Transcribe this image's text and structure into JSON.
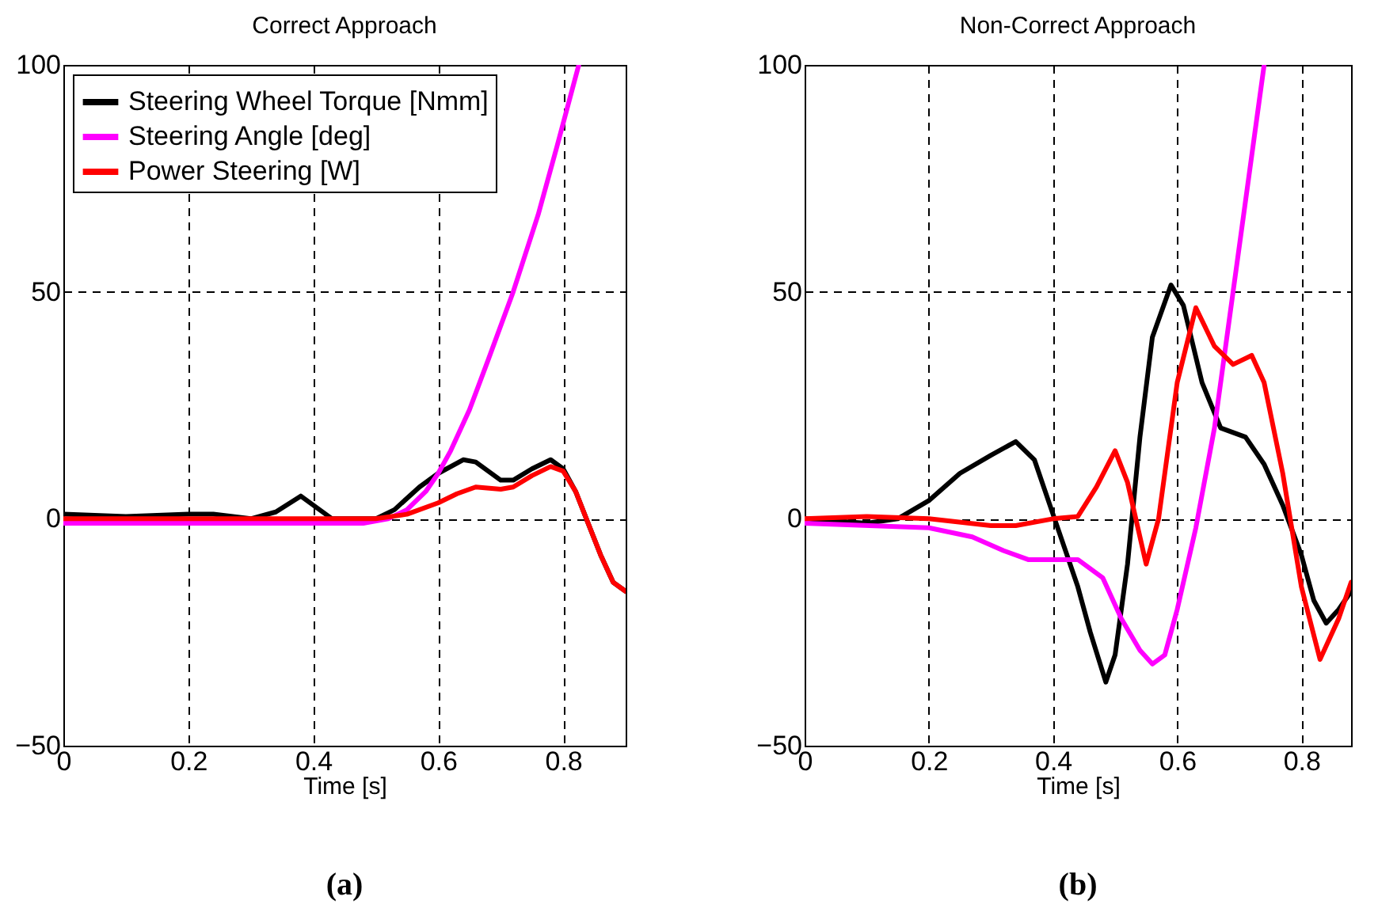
{
  "chart_data": [
    {
      "type": "line",
      "title": "Correct Approach",
      "xlabel": "Time [s]",
      "annotations": [
        "(a)"
      ],
      "xlim": [
        0,
        0.9
      ],
      "xticks": [
        0,
        0.2,
        0.4,
        0.6,
        0.8
      ],
      "ylim": [
        -50,
        100
      ],
      "yticks": [
        -50,
        0,
        50,
        100
      ],
      "grid": true,
      "legend": "top left",
      "line_style": "solid",
      "marker": "none",
      "series": [
        {
          "name": "Steering Wheel Torque [Nmm]",
          "color": "#000000",
          "x": [
            0,
            0.1,
            0.2,
            0.24,
            0.3,
            0.34,
            0.38,
            0.41,
            0.43,
            0.5,
            0.53,
            0.57,
            0.6,
            0.64,
            0.66,
            0.7,
            0.72,
            0.75,
            0.78,
            0.8,
            0.82,
            0.84,
            0.86,
            0.88,
            0.9
          ],
          "values": [
            1,
            0.5,
            1,
            1,
            0,
            1.5,
            5,
            2,
            0,
            0,
            2,
            7,
            10,
            13,
            12.5,
            8.5,
            8.5,
            11,
            13,
            11,
            6,
            -1,
            -8,
            -14,
            -16
          ]
        },
        {
          "name": "Steering Angle [deg]",
          "color": "#ff00ff",
          "x": [
            0,
            0.4,
            0.48,
            0.52,
            0.55,
            0.58,
            0.6,
            0.62,
            0.65,
            0.68,
            0.72,
            0.76,
            0.79,
            0.825
          ],
          "values": [
            -1,
            -1,
            -1,
            0,
            2,
            6,
            10,
            15,
            24,
            35,
            50,
            67,
            82,
            100
          ]
        },
        {
          "name": "Power Steering [W]",
          "color": "#ff0000",
          "x": [
            0,
            0.5,
            0.55,
            0.6,
            0.63,
            0.66,
            0.7,
            0.72,
            0.75,
            0.78,
            0.8,
            0.82,
            0.84,
            0.86,
            0.88,
            0.9
          ],
          "values": [
            0,
            0,
            1,
            3.5,
            5.5,
            7,
            6.5,
            7,
            9.5,
            11.5,
            10.5,
            6,
            -1,
            -8,
            -14,
            -16
          ]
        }
      ]
    },
    {
      "type": "line",
      "title": "Non-Correct Approach",
      "xlabel": "Time [s]",
      "annotations": [
        "(b)"
      ],
      "xlim": [
        0,
        0.88
      ],
      "xticks": [
        0,
        0.2,
        0.4,
        0.6,
        0.8
      ],
      "ylim": [
        -50,
        100
      ],
      "yticks": [
        -50,
        0,
        50,
        100
      ],
      "grid": true,
      "legend": "top left",
      "line_style": "solid",
      "marker": "none",
      "series": [
        {
          "name": "Steering Wheel Torque [Nmm]",
          "color": "#000000",
          "x": [
            0,
            0.1,
            0.15,
            0.2,
            0.25,
            0.3,
            0.34,
            0.37,
            0.4,
            0.44,
            0.46,
            0.485,
            0.5,
            0.52,
            0.54,
            0.56,
            0.59,
            0.61,
            0.64,
            0.67,
            0.71,
            0.74,
            0.77,
            0.8,
            0.82,
            0.84,
            0.86,
            0.88
          ],
          "values": [
            0,
            -1,
            0,
            4,
            10,
            14,
            17,
            13,
            1,
            -15,
            -25,
            -36,
            -30,
            -10,
            18,
            40,
            51.5,
            47,
            30,
            20,
            18,
            12,
            3,
            -8,
            -18,
            -23,
            -20,
            -16
          ]
        },
        {
          "name": "Steering Angle [deg]",
          "color": "#ff00ff",
          "x": [
            0,
            0.2,
            0.27,
            0.32,
            0.36,
            0.44,
            0.48,
            0.51,
            0.54,
            0.56,
            0.58,
            0.6,
            0.63,
            0.66,
            0.69,
            0.72,
            0.74
          ],
          "values": [
            -1,
            -2,
            -4,
            -7,
            -9,
            -9,
            -13,
            -22,
            -29,
            -32,
            -30,
            -20,
            -2,
            20,
            50,
            80,
            100
          ]
        },
        {
          "name": "Power Steering [W]",
          "color": "#ff0000",
          "x": [
            0,
            0.1,
            0.2,
            0.3,
            0.34,
            0.4,
            0.44,
            0.47,
            0.5,
            0.52,
            0.55,
            0.57,
            0.6,
            0.63,
            0.66,
            0.69,
            0.72,
            0.74,
            0.77,
            0.8,
            0.83,
            0.86,
            0.88
          ],
          "values": [
            0,
            0.5,
            0,
            -1.5,
            -1.5,
            0,
            0.5,
            7,
            15,
            8,
            -10,
            0,
            30,
            46.5,
            38,
            34,
            36,
            30,
            10,
            -15,
            -31,
            -22,
            -14
          ]
        }
      ]
    }
  ]
}
